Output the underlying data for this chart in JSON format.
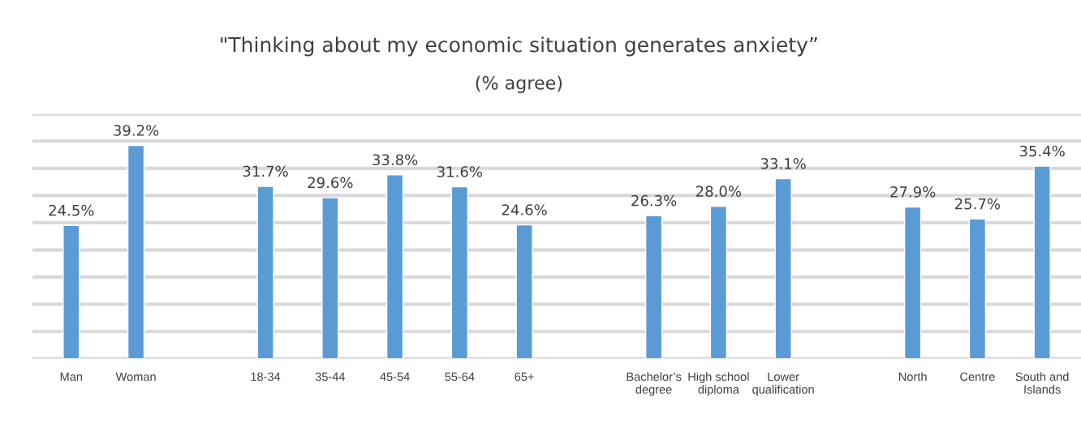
{
  "chart_data": {
    "type": "bar",
    "title": "\"Thinking about my economic situation generates anxiety”",
    "subtitle": "(% agree)",
    "categories": [
      "Man",
      "Woman",
      null,
      "18-34",
      "35-44",
      "45-54",
      "55-64",
      "65+",
      null,
      "Bachelor’s\ndegree",
      "High school\ndiploma",
      "Lower\nqualification",
      null,
      "North",
      "Centre",
      "South and\nIslands"
    ],
    "values": [
      24.5,
      39.2,
      null,
      31.7,
      29.6,
      33.8,
      31.6,
      24.6,
      null,
      26.3,
      28.0,
      33.1,
      null,
      27.9,
      25.7,
      35.4
    ],
    "value_labels": [
      "24.5%",
      "39.2%",
      null,
      "31.7%",
      "29.6%",
      "33.8%",
      "31.6%",
      "24.6%",
      null,
      "26.3%",
      "28.0%",
      "33.1%",
      null,
      "27.9%",
      "25.7%",
      "35.4%"
    ],
    "color": "#5b9bd5",
    "ylim": [
      0,
      45
    ],
    "yticks": [
      {
        "value": 0,
        "label": null
      },
      {
        "value": 5,
        "label": null
      },
      {
        "value": 10,
        "label": null
      },
      {
        "value": 15,
        "label": null
      },
      {
        "value": 20,
        "label": null
      },
      {
        "value": 25,
        "label": null
      },
      {
        "value": 30,
        "label": null
      },
      {
        "value": 35,
        "label": null
      },
      {
        "value": 40,
        "label": null
      },
      {
        "value": 45,
        "label": null
      }
    ],
    "grid": "y",
    "tick_labels": "x"
  }
}
